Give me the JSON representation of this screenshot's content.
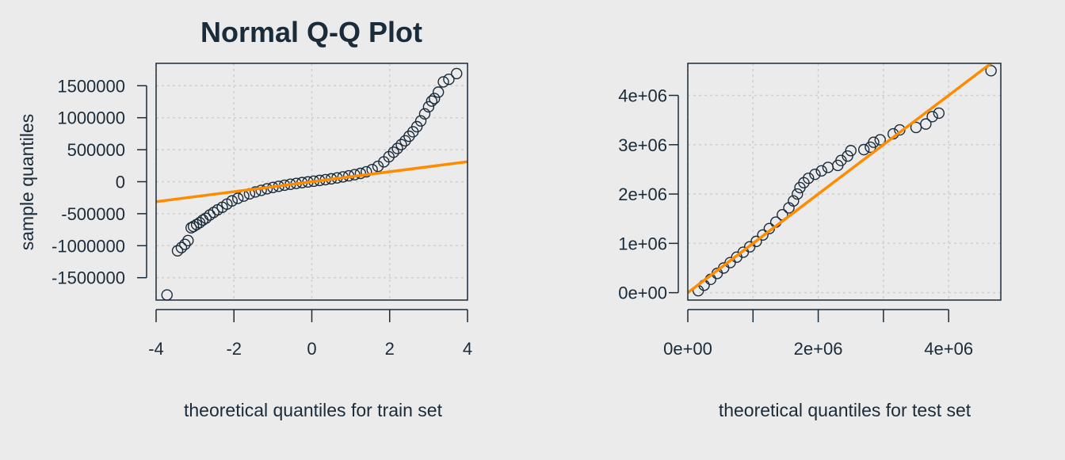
{
  "colors": {
    "background": "#ebebeb",
    "ink": "#1a2b3a",
    "reference_line": "#ff8c00",
    "grid": "#cfcfcf"
  },
  "chart_data": [
    {
      "type": "scatter",
      "title": "Normal Q-Q Plot",
      "xlabel": "theoretical quantiles for train set",
      "ylabel": "sample quantiles",
      "xlim": [
        -4,
        4
      ],
      "ylim": [
        -1850000,
        1850000
      ],
      "grid": true,
      "x_ticks": [
        -4,
        -2,
        0,
        2,
        4
      ],
      "x_tick_labels": [
        "-4",
        "-2",
        "0",
        "2",
        "4"
      ],
      "y_ticks": [
        1500000,
        1000000,
        500000,
        0,
        -500000,
        -1000000,
        -1500000
      ],
      "y_tick_labels": [
        "1500000",
        "1000000",
        "500000",
        "0",
        "-500000",
        "-1000000",
        "-1500000"
      ],
      "reference_line": {
        "intercept": 0,
        "slope": 78000
      },
      "points": [
        [
          -3.72,
          -1770000
        ],
        [
          -3.45,
          -1080000
        ],
        [
          -3.35,
          -1030000
        ],
        [
          -3.26,
          -980000
        ],
        [
          -3.18,
          -920000
        ],
        [
          -3.1,
          -720000
        ],
        [
          -3.04,
          -700000
        ],
        [
          -2.96,
          -670000
        ],
        [
          -2.88,
          -640000
        ],
        [
          -2.8,
          -600000
        ],
        [
          -2.72,
          -570000
        ],
        [
          -2.62,
          -520000
        ],
        [
          -2.52,
          -480000
        ],
        [
          -2.42,
          -440000
        ],
        [
          -2.3,
          -400000
        ],
        [
          -2.18,
          -350000
        ],
        [
          -2.05,
          -300000
        ],
        [
          -1.9,
          -260000
        ],
        [
          -1.75,
          -225000
        ],
        [
          -1.6,
          -190000
        ],
        [
          -1.45,
          -160000
        ],
        [
          -1.3,
          -135000
        ],
        [
          -1.15,
          -110000
        ],
        [
          -1.0,
          -90000
        ],
        [
          -0.85,
          -72000
        ],
        [
          -0.7,
          -55000
        ],
        [
          -0.55,
          -40000
        ],
        [
          -0.4,
          -27000
        ],
        [
          -0.25,
          -14000
        ],
        [
          -0.1,
          -3000
        ],
        [
          0.05,
          8000
        ],
        [
          0.2,
          20000
        ],
        [
          0.35,
          32000
        ],
        [
          0.5,
          45000
        ],
        [
          0.65,
          60000
        ],
        [
          0.8,
          75000
        ],
        [
          0.95,
          92000
        ],
        [
          1.1,
          110000
        ],
        [
          1.25,
          130000
        ],
        [
          1.4,
          155000
        ],
        [
          1.55,
          190000
        ],
        [
          1.7,
          240000
        ],
        [
          1.85,
          310000
        ],
        [
          1.98,
          390000
        ],
        [
          2.1,
          460000
        ],
        [
          2.2,
          520000
        ],
        [
          2.3,
          580000
        ],
        [
          2.4,
          640000
        ],
        [
          2.5,
          710000
        ],
        [
          2.6,
          780000
        ],
        [
          2.7,
          860000
        ],
        [
          2.8,
          950000
        ],
        [
          2.9,
          1060000
        ],
        [
          3.0,
          1170000
        ],
        [
          3.08,
          1260000
        ],
        [
          3.15,
          1300000
        ],
        [
          3.25,
          1400000
        ],
        [
          3.38,
          1560000
        ],
        [
          3.52,
          1600000
        ],
        [
          3.72,
          1690000
        ]
      ]
    },
    {
      "type": "scatter",
      "title": "",
      "xlabel": "theoretical quantiles for test set",
      "ylabel": "",
      "xlim": [
        0,
        4800000
      ],
      "ylim": [
        -150000,
        4650000
      ],
      "grid": true,
      "x_ticks": [
        0,
        1000000,
        2000000,
        3000000,
        4000000
      ],
      "x_tick_labels": [
        "0e+00",
        "",
        "2e+06",
        "",
        "4e+06"
      ],
      "y_ticks": [
        0,
        1000000,
        2000000,
        3000000,
        4000000
      ],
      "y_tick_labels": [
        "0e+00",
        "1e+06",
        "2e+06",
        "3e+06",
        "4e+06"
      ],
      "reference_line": {
        "intercept": 0,
        "slope": 1
      },
      "points": [
        [
          160000,
          40000
        ],
        [
          250000,
          150000
        ],
        [
          350000,
          270000
        ],
        [
          450000,
          390000
        ],
        [
          550000,
          500000
        ],
        [
          650000,
          610000
        ],
        [
          750000,
          720000
        ],
        [
          850000,
          820000
        ],
        [
          950000,
          930000
        ],
        [
          1050000,
          1040000
        ],
        [
          1150000,
          1170000
        ],
        [
          1250000,
          1300000
        ],
        [
          1350000,
          1430000
        ],
        [
          1450000,
          1580000
        ],
        [
          1550000,
          1720000
        ],
        [
          1620000,
          1860000
        ],
        [
          1680000,
          2000000
        ],
        [
          1720000,
          2130000
        ],
        [
          1780000,
          2230000
        ],
        [
          1850000,
          2320000
        ],
        [
          1950000,
          2400000
        ],
        [
          2050000,
          2470000
        ],
        [
          2150000,
          2540000
        ],
        [
          2300000,
          2580000
        ],
        [
          2350000,
          2680000
        ],
        [
          2450000,
          2770000
        ],
        [
          2500000,
          2880000
        ],
        [
          2700000,
          2900000
        ],
        [
          2800000,
          2950000
        ],
        [
          2850000,
          3050000
        ],
        [
          2950000,
          3100000
        ],
        [
          3150000,
          3220000
        ],
        [
          3250000,
          3300000
        ],
        [
          3500000,
          3350000
        ],
        [
          3650000,
          3420000
        ],
        [
          3750000,
          3570000
        ],
        [
          3850000,
          3640000
        ],
        [
          4650000,
          4500000
        ]
      ]
    }
  ]
}
